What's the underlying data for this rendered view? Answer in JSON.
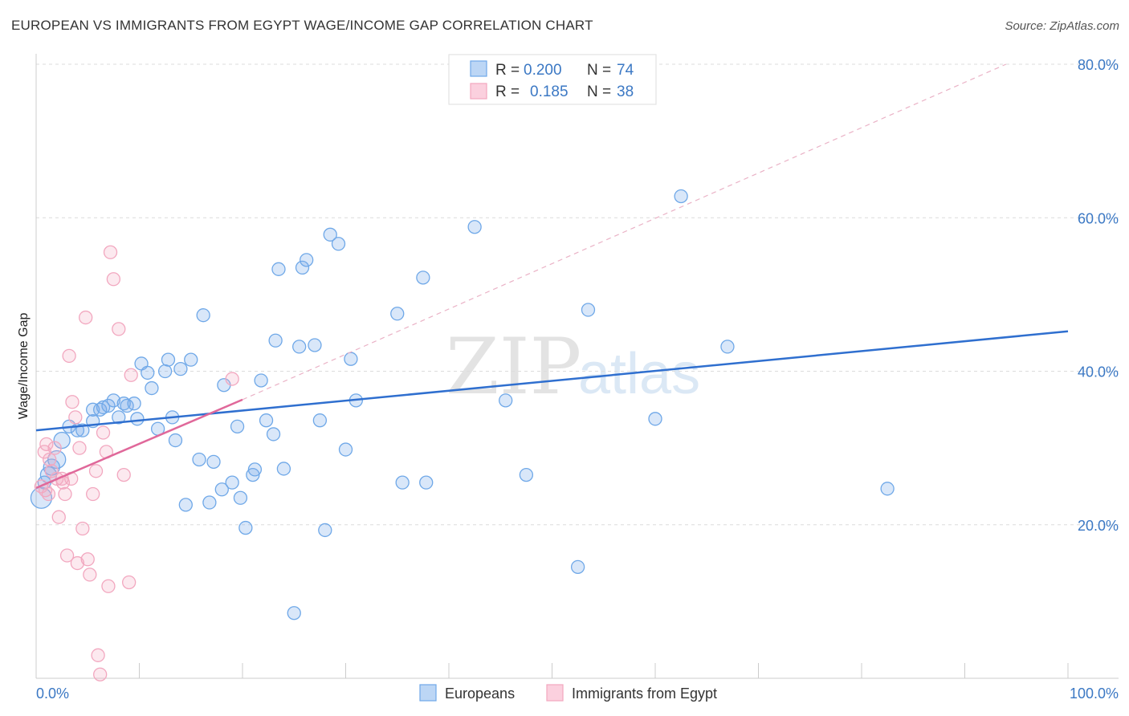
{
  "title": "EUROPEAN VS IMMIGRANTS FROM EGYPT WAGE/INCOME GAP CORRELATION CHART",
  "source": "Source: ZipAtlas.com",
  "colors": {
    "blue": "#6fa8e8",
    "blue_line": "#2f6fcf",
    "pink": "#f2a7bf",
    "pink_line": "#e0689a",
    "tick_text": "#3b78c4"
  },
  "legend": {
    "r_label": "R =",
    "n_label": "N =",
    "rows": [
      {
        "r": "0.200",
        "n": "74"
      },
      {
        "r": "0.185",
        "n": "38"
      }
    ]
  },
  "watermark": {
    "zip": "ZIP",
    "atlas": "atlas"
  },
  "chart_data": {
    "type": "scatter",
    "title": "EUROPEAN VS IMMIGRANTS FROM EGYPT WAGE/INCOME GAP CORRELATION CHART",
    "xlabel": "",
    "ylabel": "Wage/Income Gap",
    "xlim": [
      0,
      100
    ],
    "ylim": [
      0,
      80
    ],
    "x_tick_labels": [
      "0.0%",
      "100.0%"
    ],
    "y_ticks": [
      20,
      40,
      60,
      80
    ],
    "y_tick_labels": [
      "20.0%",
      "40.0%",
      "60.0%",
      "80.0%"
    ],
    "series": [
      {
        "name": "Europeans",
        "trend": {
          "x0": 0,
          "y0": 32.3,
          "x1": 100,
          "y1": 45.2
        },
        "points": [
          [
            0.5,
            23.5
          ],
          [
            0.8,
            25.5
          ],
          [
            1.2,
            26.5
          ],
          [
            1.5,
            27.5
          ],
          [
            2,
            28.5
          ],
          [
            2.5,
            31
          ],
          [
            3.2,
            32.8
          ],
          [
            4,
            32.3
          ],
          [
            4.5,
            32.3
          ],
          [
            5.5,
            33.5
          ],
          [
            5.5,
            35
          ],
          [
            6.2,
            35
          ],
          [
            6.5,
            35.3
          ],
          [
            7,
            35.5
          ],
          [
            7.5,
            36.2
          ],
          [
            8,
            34
          ],
          [
            8.5,
            35.8
          ],
          [
            8.8,
            35.5
          ],
          [
            9.5,
            35.8
          ],
          [
            9.8,
            33.8
          ],
          [
            10.2,
            41
          ],
          [
            10.8,
            39.8
          ],
          [
            11.2,
            37.8
          ],
          [
            11.8,
            32.5
          ],
          [
            12.5,
            40
          ],
          [
            12.8,
            41.5
          ],
          [
            13.2,
            34
          ],
          [
            13.5,
            31
          ],
          [
            14,
            40.3
          ],
          [
            14.5,
            22.6
          ],
          [
            15,
            41.5
          ],
          [
            15.8,
            28.5
          ],
          [
            16.2,
            47.3
          ],
          [
            16.8,
            22.9
          ],
          [
            17.2,
            28.2
          ],
          [
            18,
            24.6
          ],
          [
            18.2,
            38.2
          ],
          [
            19,
            25.5
          ],
          [
            19.5,
            32.8
          ],
          [
            19.8,
            23.5
          ],
          [
            20.3,
            19.6
          ],
          [
            21,
            26.5
          ],
          [
            21.2,
            27.2
          ],
          [
            21.8,
            38.8
          ],
          [
            22.3,
            33.6
          ],
          [
            23,
            31.8
          ],
          [
            23.2,
            44
          ],
          [
            23.5,
            53.3
          ],
          [
            24,
            27.3
          ],
          [
            25,
            8.5
          ],
          [
            25.5,
            43.2
          ],
          [
            25.8,
            53.5
          ],
          [
            26.2,
            54.5
          ],
          [
            27,
            43.4
          ],
          [
            27.5,
            33.6
          ],
          [
            28,
            19.3
          ],
          [
            28.5,
            57.8
          ],
          [
            29.3,
            56.6
          ],
          [
            30,
            29.8
          ],
          [
            30.5,
            41.6
          ],
          [
            31,
            36.2
          ],
          [
            35,
            47.5
          ],
          [
            35.5,
            25.5
          ],
          [
            37.5,
            52.2
          ],
          [
            37.8,
            25.5
          ],
          [
            42.5,
            58.8
          ],
          [
            45.5,
            36.2
          ],
          [
            47.5,
            26.5
          ],
          [
            52.5,
            14.5
          ],
          [
            53.5,
            48
          ],
          [
            60,
            33.8
          ],
          [
            62.5,
            62.8
          ],
          [
            67,
            43.2
          ],
          [
            82.5,
            24.7
          ]
        ]
      },
      {
        "name": "Immigrants from Egypt",
        "trend": {
          "x0": 0,
          "y0": 24.8,
          "x1": 20,
          "y1": 36.3
        },
        "ext": {
          "x0": 20,
          "y0": 36.3,
          "x1": 94,
          "y1": 80
        },
        "points": [
          [
            0.5,
            25
          ],
          [
            0.8,
            29.5
          ],
          [
            1,
            30.5
          ],
          [
            1.2,
            24
          ],
          [
            1.5,
            27
          ],
          [
            1.8,
            30
          ],
          [
            2,
            26
          ],
          [
            2.2,
            21
          ],
          [
            2.5,
            26
          ],
          [
            2.8,
            24
          ],
          [
            3,
            16
          ],
          [
            3.2,
            42
          ],
          [
            3.5,
            36
          ],
          [
            3.8,
            34
          ],
          [
            4,
            15
          ],
          [
            4.2,
            30
          ],
          [
            4.5,
            19.5
          ],
          [
            4.8,
            47
          ],
          [
            5,
            15.5
          ],
          [
            5.2,
            13.5
          ],
          [
            5.5,
            24
          ],
          [
            5.8,
            27
          ],
          [
            6,
            3
          ],
          [
            6.2,
            0.5
          ],
          [
            6.5,
            32
          ],
          [
            6.8,
            29.5
          ],
          [
            7,
            12
          ],
          [
            7.2,
            55.5
          ],
          [
            7.5,
            52
          ],
          [
            8,
            45.5
          ],
          [
            8.5,
            26.5
          ],
          [
            9,
            12.5
          ],
          [
            9.2,
            39.5
          ],
          [
            19,
            39
          ],
          [
            1.3,
            28.5
          ],
          [
            2.6,
            25.5
          ],
          [
            0.9,
            24.5
          ],
          [
            3.4,
            26
          ]
        ]
      }
    ]
  }
}
